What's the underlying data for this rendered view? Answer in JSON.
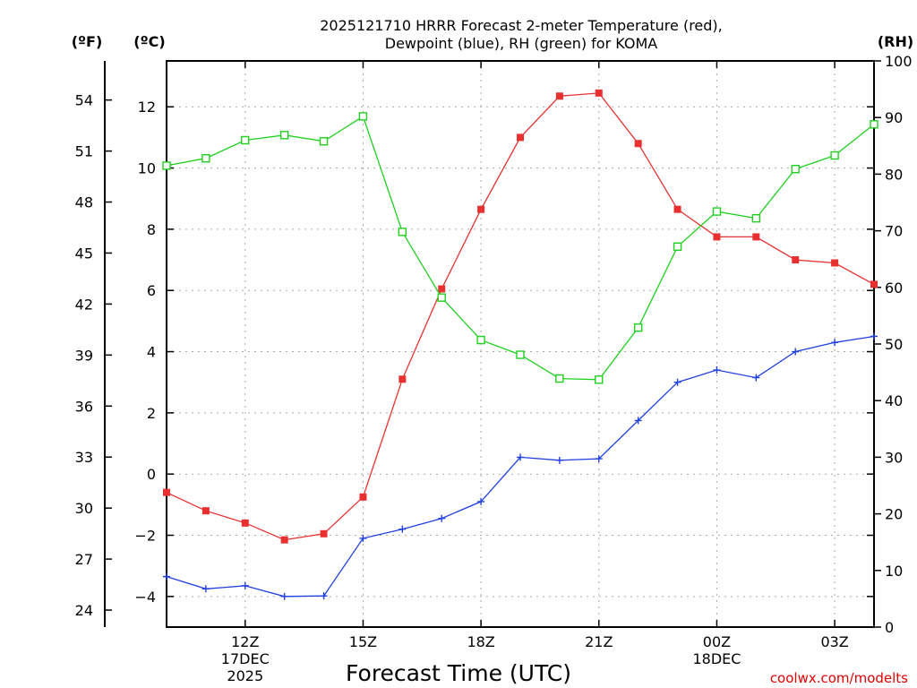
{
  "chart_data": {
    "type": "line",
    "title_line1": "2025121710 HRRR Forecast 2-meter Temperature (red),",
    "title_line2": "Dewpoint (blue), RH (green) for KOMA",
    "xlabel": "Forecast Time (UTC)",
    "credit": "coolwx.com/modelts",
    "units": {
      "fahrenheit": "(ºF)",
      "celsius": "(ºC)",
      "rh": "(RH)"
    },
    "x_hours": [
      10,
      11,
      12,
      13,
      14,
      15,
      16,
      17,
      18,
      19,
      20,
      21,
      22,
      23,
      24,
      25,
      26,
      27,
      28
    ],
    "xlim": [
      10,
      28
    ],
    "x_ticks": [
      {
        "hour": 12,
        "label": "12Z",
        "date": "17DEC",
        "year": "2025"
      },
      {
        "hour": 15,
        "label": "15Z",
        "date": "",
        "year": ""
      },
      {
        "hour": 18,
        "label": "18Z",
        "date": "",
        "year": ""
      },
      {
        "hour": 21,
        "label": "21Z",
        "date": "",
        "year": ""
      },
      {
        "hour": 24,
        "label": "00Z",
        "date": "18DEC",
        "year": ""
      },
      {
        "hour": 27,
        "label": "03Z",
        "date": "",
        "year": ""
      }
    ],
    "celsius_axis": {
      "ylim": [
        -5,
        13.5
      ],
      "ticks": [
        12,
        10,
        8,
        6,
        4,
        2,
        0,
        -2,
        -4
      ]
    },
    "fahrenheit_axis": {
      "ticks": [
        54,
        51,
        48,
        45,
        42,
        39,
        36,
        33,
        30,
        27,
        24
      ]
    },
    "rh_axis": {
      "ylim": [
        0,
        100
      ],
      "ticks": [
        100,
        90,
        80,
        70,
        60,
        50,
        40,
        30,
        20,
        10,
        0
      ]
    },
    "series": [
      {
        "name": "Temperature",
        "axis": "celsius",
        "color": "#e83030",
        "marker": "filled-square",
        "values": [
          -0.6,
          -1.2,
          -1.6,
          -2.15,
          -1.95,
          -0.75,
          3.1,
          6.05,
          8.65,
          11.0,
          12.35,
          12.45,
          10.8,
          8.65,
          7.75,
          7.75,
          7.0,
          6.9,
          6.2
        ]
      },
      {
        "name": "Dewpoint",
        "axis": "celsius",
        "color": "#2040e0",
        "marker": "plus",
        "values": [
          -3.35,
          -3.75,
          -3.65,
          -4.0,
          -3.98,
          -2.1,
          -1.8,
          -1.45,
          -0.9,
          0.55,
          0.45,
          0.5,
          1.75,
          3.0,
          3.4,
          3.15,
          4.0,
          4.3,
          4.5
        ]
      },
      {
        "name": "RH",
        "axis": "rh",
        "color": "#20d020",
        "marker": "open-square",
        "values": [
          81.5,
          82.8,
          86.0,
          86.9,
          85.8,
          90.2,
          69.8,
          58.2,
          50.7,
          48.1,
          43.9,
          43.7,
          52.9,
          67.2,
          73.4,
          72.2,
          80.9,
          83.3,
          88.8
        ]
      }
    ]
  }
}
